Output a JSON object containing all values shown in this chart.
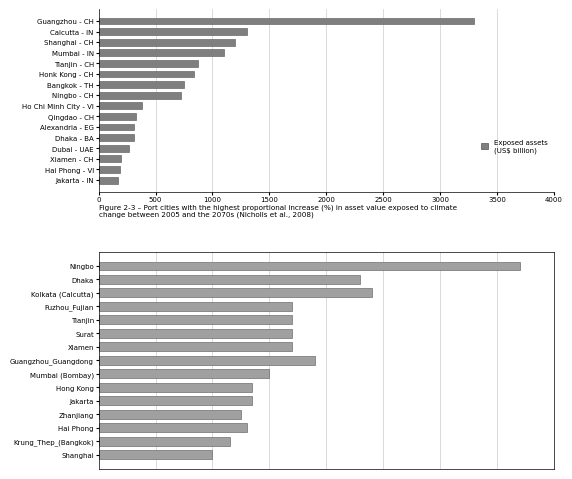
{
  "chart1": {
    "categories": [
      "Guangzhou - CH",
      "Calcutta - IN",
      "Shanghai - CH",
      "Mumbai - IN",
      "Tianjin - CH",
      "Honk Kong - CH",
      "Bangkok - TH",
      "Ningbo - CH",
      "Ho Chi Minh City - VI",
      "Qingdao - CH",
      "Alexandria - EG",
      "Dhaka - BA",
      "Dubai - UAE",
      "Xiamen - CH",
      "Hai Phong - VI",
      "Jakarta - IN"
    ],
    "values": [
      3300,
      1300,
      1200,
      1100,
      870,
      840,
      750,
      720,
      380,
      330,
      310,
      310,
      270,
      200,
      190,
      170
    ],
    "bar_color": "#7f7f7f",
    "legend_label": "Exposed assets\n(US$ billion)",
    "xlim": [
      0,
      4000
    ],
    "xticks": [
      0,
      500,
      1000,
      1500,
      2000,
      2500,
      3000,
      3500,
      4000
    ]
  },
  "chart2": {
    "categories": [
      "Ningbo",
      "Dhaka",
      "Kolkata (Calcutta)",
      "Fuzhou_Fujian",
      "Tianjin",
      "Surat",
      "Xiamen",
      "Guangzhou_Guangdong",
      "Mumbai (Bombay)",
      "Hong Kong",
      "Jakarta",
      "Zhanjiang",
      "Hai Phong",
      "Krung_Thep_(Bangkok)",
      "Shanghai"
    ],
    "values": [
      3700,
      2300,
      2400,
      1700,
      1700,
      1700,
      1700,
      1900,
      1500,
      1350,
      1350,
      1250,
      1300,
      1150,
      1000
    ],
    "bar_color": "#a0a0a0",
    "xlim": [
      0,
      4000
    ]
  },
  "caption": "Figure 2-3 – Port cities with the highest proportional increase (%) in asset value exposed to climate\nchange between 2005 and the 2070s (Nicholls et al., 2008)",
  "background_color": "#ffffff",
  "bar_edgecolor": "#555555"
}
